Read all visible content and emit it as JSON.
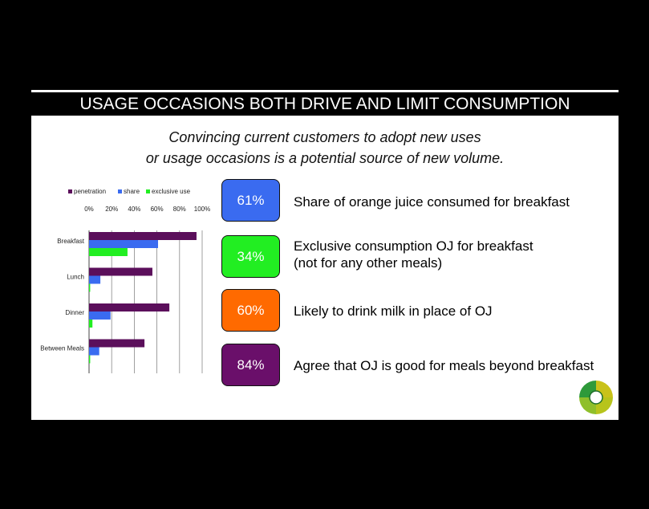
{
  "title": "USAGE OCCASIONS BOTH DRIVE AND LIMIT CONSUMPTION",
  "subtitle_lines": [
    "Convincing current customers to adopt new uses",
    "or usage occasions is a potential source of new volume."
  ],
  "stats": [
    {
      "value": "61%",
      "text_lines": [
        "Share of orange juice consumed for breakfast"
      ],
      "color": "#3A6BF0"
    },
    {
      "value": "34%",
      "text_lines": [
        "Exclusive consumption OJ for breakfast",
        "(not for any other meals)"
      ],
      "color": "#22EE22"
    },
    {
      "value": "60%",
      "text_lines": [
        "Likely to drink milk in place of OJ"
      ],
      "color": "#FF6A00"
    },
    {
      "value": "84%",
      "text_lines": [
        "Agree that OJ is good for meals beyond breakfast"
      ],
      "color": "#6A0F6A"
    }
  ],
  "chart_data": {
    "type": "bar",
    "orientation": "horizontal",
    "categories": [
      "Breakfast",
      "Lunch",
      "Dinner",
      "Between Meals"
    ],
    "series": [
      {
        "name": "penetration",
        "values": [
          95,
          56,
          71,
          49
        ],
        "color": "#5B0F5B"
      },
      {
        "name": "share",
        "values": [
          61,
          10,
          19,
          9
        ],
        "color": "#3A6BF0"
      },
      {
        "name": "exclusive use",
        "values": [
          34,
          1,
          3,
          1
        ],
        "color": "#22EE22"
      }
    ],
    "xlim": [
      0,
      100
    ],
    "x_ticks": [
      "0%",
      "20%",
      "40%",
      "60%",
      "80%",
      "100%"
    ],
    "grid": true,
    "legend_position": "top"
  }
}
